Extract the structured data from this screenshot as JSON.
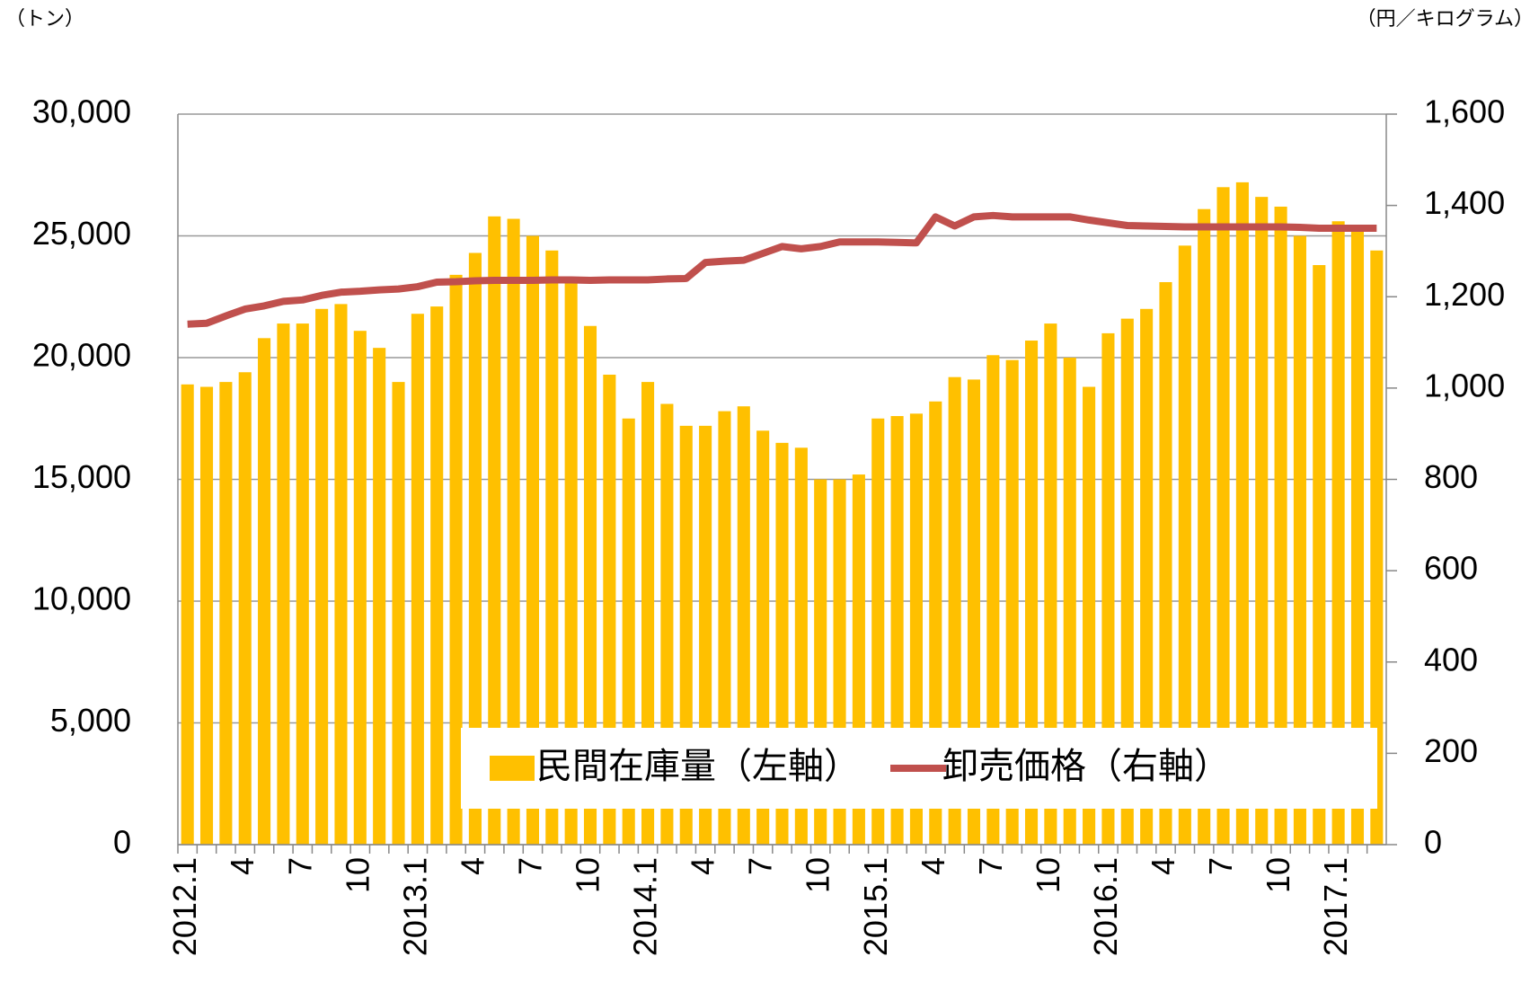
{
  "chart_data": {
    "type": "bar_line",
    "y_axis_label": "（トン）",
    "y2_axis_label": "（円／キログラム）",
    "categories": [
      "2012.1",
      null,
      null,
      "4",
      null,
      null,
      "7",
      null,
      null,
      "10",
      null,
      null,
      "2013.1",
      null,
      null,
      "4",
      null,
      null,
      "7",
      null,
      null,
      "10",
      null,
      null,
      "2014.1",
      null,
      null,
      "4",
      null,
      null,
      "7",
      null,
      null,
      "10",
      null,
      null,
      "2015.1",
      null,
      null,
      "4",
      null,
      null,
      "7",
      null,
      null,
      "10",
      null,
      null,
      "2016.1",
      null,
      null,
      "4",
      null,
      null,
      "7",
      null,
      null,
      "10",
      null,
      null,
      "2017.1",
      null,
      null
    ],
    "series": [
      {
        "name": "民間在庫量（左軸）",
        "type": "bar",
        "color": "#FFC000",
        "axis": "y",
        "values": [
          18900,
          18800,
          19000,
          19400,
          20800,
          21400,
          21400,
          22000,
          22200,
          21100,
          20400,
          19000,
          21800,
          22100,
          23400,
          24300,
          25800,
          25700,
          25000,
          24400,
          23200,
          21300,
          19300,
          17500,
          19000,
          18100,
          17200,
          17200,
          17800,
          18000,
          17000,
          16500,
          16300,
          15000,
          15000,
          15200,
          17500,
          17600,
          17700,
          18200,
          19200,
          19100,
          20100,
          19900,
          20700,
          21400,
          20000,
          18800,
          21000,
          21600,
          22000,
          23100,
          24600,
          26100,
          27000,
          27200,
          26600,
          26200,
          25000,
          23800,
          25600,
          25300,
          24400
        ]
      },
      {
        "name": "卸売価格（右軸）",
        "type": "line",
        "color": "#C0504D",
        "axis": "y2",
        "values": [
          1140,
          1142,
          1158,
          1173,
          1180,
          1190,
          1193,
          1203,
          1210,
          1212,
          1215,
          1217,
          1222,
          1232,
          1233,
          1235,
          1236,
          1236,
          1236,
          1237,
          1237,
          1236,
          1237,
          1237,
          1237,
          1239,
          1240,
          1275,
          1278,
          1280,
          1295,
          1310,
          1305,
          1310,
          1320,
          1320,
          1320,
          1319,
          1318,
          1375,
          1355,
          1375,
          1378,
          1375,
          1375,
          1375,
          1375,
          1368,
          1362,
          1356,
          1355,
          1354,
          1353,
          1353,
          1353,
          1353,
          1353,
          1353,
          1352,
          1350,
          1350,
          1350,
          1350
        ]
      }
    ],
    "ylim": [
      0,
      30000
    ],
    "yticks": [
      0,
      {
        "value": 5000,
        "label": "5,000"
      },
      {
        "value": 10000,
        "label": "10,000"
      },
      {
        "value": 15000,
        "label": "15,000"
      },
      {
        "value": 20000,
        "label": "20,000"
      },
      {
        "value": 25000,
        "label": "25,000"
      },
      {
        "value": 30000,
        "label": "30,000"
      }
    ],
    "y2lim": [
      0,
      1600
    ],
    "y2ticks": [
      0,
      200,
      400,
      600,
      800,
      {
        "value": 1000,
        "label": "1,000"
      },
      {
        "value": 1200,
        "label": "1,200"
      },
      {
        "value": 1400,
        "label": "1,400"
      },
      {
        "value": 1600,
        "label": "1,600"
      }
    ],
    "grid": true,
    "legend": "lower right"
  }
}
